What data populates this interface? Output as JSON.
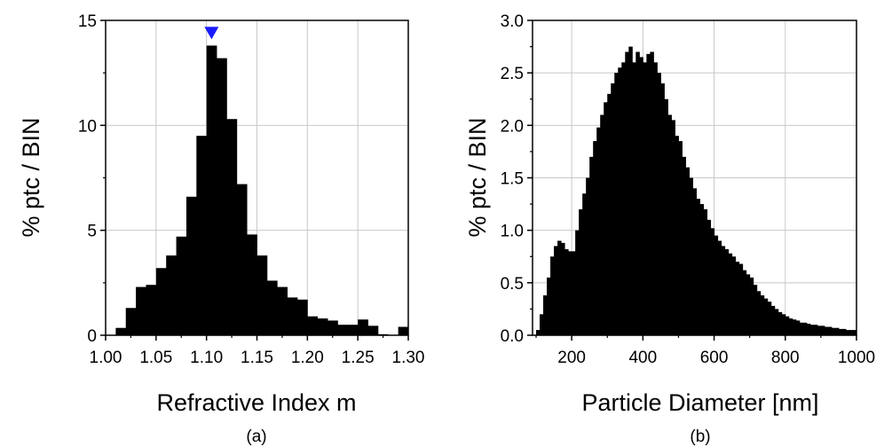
{
  "chart_data": [
    {
      "type": "bar",
      "panel_label": "(a)",
      "xlabel": "Refractive Index m",
      "ylabel": "% ptc / BIN",
      "xlim": [
        1.0,
        1.3
      ],
      "ylim": [
        0,
        15
      ],
      "xticks": [
        "1.00",
        "1.05",
        "1.10",
        "1.15",
        "1.20",
        "1.25",
        "1.30"
      ],
      "yticks": [
        "0",
        "5",
        "10",
        "15"
      ],
      "grid": true,
      "bin_width": 0.01,
      "bin_starts": [
        1.01,
        1.02,
        1.03,
        1.04,
        1.05,
        1.06,
        1.07,
        1.08,
        1.09,
        1.1,
        1.11,
        1.12,
        1.13,
        1.14,
        1.15,
        1.16,
        1.17,
        1.18,
        1.19,
        1.2,
        1.21,
        1.22,
        1.23,
        1.24,
        1.25,
        1.26,
        1.27,
        1.28,
        1.29
      ],
      "values": [
        0.35,
        1.3,
        2.3,
        2.4,
        3.2,
        3.8,
        4.7,
        6.6,
        9.5,
        13.8,
        13.2,
        10.3,
        7.2,
        4.8,
        3.8,
        2.6,
        2.3,
        1.8,
        1.7,
        0.9,
        0.8,
        0.7,
        0.5,
        0.5,
        0.75,
        0.45,
        0.05,
        0.0,
        0.4
      ],
      "marker": {
        "shape": "triangle-down",
        "x": 1.105,
        "y": 14.4,
        "color": "#1a1aff"
      },
      "bar_color": "#000000"
    },
    {
      "type": "bar",
      "panel_label": "(b)",
      "xlabel": "Particle Diameter [nm]",
      "ylabel": "% ptc / BIN",
      "xlim": [
        90,
        1000
      ],
      "ylim": [
        0,
        3.0
      ],
      "xticks": [
        "200",
        "400",
        "600",
        "800",
        "1000"
      ],
      "xtick_values": [
        200,
        400,
        600,
        800,
        1000
      ],
      "yticks": [
        "0.0",
        "0.5",
        "1.0",
        "1.5",
        "2.0",
        "2.5",
        "3.0"
      ],
      "grid": true,
      "bar_color": "#000000",
      "x": [
        100,
        110,
        120,
        130,
        140,
        150,
        160,
        170,
        180,
        190,
        200,
        210,
        220,
        230,
        240,
        250,
        260,
        270,
        280,
        290,
        300,
        310,
        320,
        330,
        340,
        350,
        360,
        370,
        380,
        390,
        400,
        410,
        420,
        430,
        440,
        450,
        460,
        470,
        480,
        490,
        500,
        510,
        520,
        530,
        540,
        550,
        560,
        570,
        580,
        590,
        600,
        610,
        620,
        630,
        640,
        650,
        660,
        670,
        680,
        690,
        700,
        710,
        720,
        730,
        740,
        750,
        760,
        770,
        780,
        790,
        800,
        810,
        820,
        830,
        840,
        850,
        860,
        870,
        880,
        890,
        900,
        910,
        920,
        930,
        940,
        950,
        960,
        970,
        980,
        990
      ],
      "values": [
        0.05,
        0.2,
        0.38,
        0.55,
        0.75,
        0.85,
        0.9,
        0.88,
        0.82,
        0.8,
        0.8,
        1.0,
        1.2,
        1.35,
        1.5,
        1.7,
        1.85,
        1.98,
        2.1,
        2.22,
        2.3,
        2.4,
        2.5,
        2.55,
        2.6,
        2.7,
        2.75,
        2.6,
        2.7,
        2.65,
        2.6,
        2.68,
        2.7,
        2.6,
        2.5,
        2.4,
        2.25,
        2.1,
        2.05,
        1.9,
        1.85,
        1.7,
        1.6,
        1.5,
        1.4,
        1.3,
        1.25,
        1.2,
        1.1,
        1.02,
        0.95,
        0.9,
        0.85,
        0.82,
        0.78,
        0.75,
        0.7,
        0.68,
        0.62,
        0.58,
        0.55,
        0.48,
        0.42,
        0.38,
        0.35,
        0.32,
        0.28,
        0.25,
        0.22,
        0.2,
        0.18,
        0.16,
        0.15,
        0.14,
        0.12,
        0.12,
        0.11,
        0.1,
        0.1,
        0.09,
        0.09,
        0.08,
        0.08,
        0.07,
        0.07,
        0.06,
        0.06,
        0.05,
        0.05,
        0.05
      ]
    }
  ]
}
